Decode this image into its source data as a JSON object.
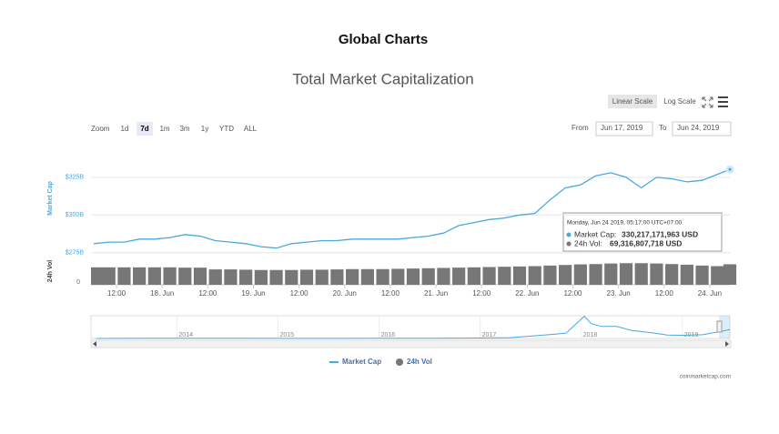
{
  "header": {
    "title": "Global Charts"
  },
  "controls": {
    "scale_buttons": [
      "Linear Scale",
      "Log Scale"
    ],
    "active_scale_index": 0,
    "zoom_label": "Zoom",
    "zoom_buttons": [
      "1d",
      "7d",
      "1m",
      "3m",
      "1y",
      "YTD",
      "ALL"
    ],
    "active_zoom_index": 1,
    "from_label": "From",
    "from_value": "Jun 17, 2019",
    "to_label": "To",
    "to_value": "Jun 24, 2019"
  },
  "chart_data": {
    "type": "line",
    "title": "Total Market Capitalization",
    "y_label": "Market Cap",
    "y2_label": "24h Vol",
    "xlim": [
      "2019-06-17T05:17",
      "2019-06-24T05:17"
    ],
    "xticks": [
      {
        "value": "2019-06-17T12:00",
        "label": "12:00"
      },
      {
        "value": "2019-06-18T00:00",
        "label": "18. Jun"
      },
      {
        "value": "2019-06-18T12:00",
        "label": "12:00"
      },
      {
        "value": "2019-06-19T00:00",
        "label": "19. Jun"
      },
      {
        "value": "2019-06-19T12:00",
        "label": "12:00"
      },
      {
        "value": "2019-06-20T00:00",
        "label": "20. Jun"
      },
      {
        "value": "2019-06-20T12:00",
        "label": "12:00"
      },
      {
        "value": "2019-06-21T00:00",
        "label": "21. Jun"
      },
      {
        "value": "2019-06-21T12:00",
        "label": "12:00"
      },
      {
        "value": "2019-06-22T00:00",
        "label": "22. Jun"
      },
      {
        "value": "2019-06-22T12:00",
        "label": "12:00"
      },
      {
        "value": "2019-06-23T00:00",
        "label": "23. Jun"
      },
      {
        "value": "2019-06-23T12:00",
        "label": "12:00"
      },
      {
        "value": "2019-06-24T00:00",
        "label": "24. Jun"
      }
    ],
    "ylim": [
      270000000000.0,
      337000000000.0
    ],
    "yticks": [
      {
        "value": 275000000000.0,
        "label": "$275B"
      },
      {
        "value": 300000000000.0,
        "label": "$300B"
      },
      {
        "value": 325000000000.0,
        "label": "$325B"
      }
    ],
    "y2lim": [
      0,
      80000000000.0
    ],
    "y2ticks": [
      0
    ],
    "grid": true,
    "x": [
      "2019-06-17T06:00",
      "2019-06-17T10:00",
      "2019-06-17T14:00",
      "2019-06-17T18:00",
      "2019-06-17T22:00",
      "2019-06-18T02:00",
      "2019-06-18T06:00",
      "2019-06-18T10:00",
      "2019-06-18T14:00",
      "2019-06-18T18:00",
      "2019-06-18T22:00",
      "2019-06-19T02:00",
      "2019-06-19T06:00",
      "2019-06-19T10:00",
      "2019-06-19T14:00",
      "2019-06-19T18:00",
      "2019-06-19T22:00",
      "2019-06-20T02:00",
      "2019-06-20T06:00",
      "2019-06-20T10:00",
      "2019-06-20T14:00",
      "2019-06-20T18:00",
      "2019-06-20T22:00",
      "2019-06-21T02:00",
      "2019-06-21T06:00",
      "2019-06-21T10:00",
      "2019-06-21T14:00",
      "2019-06-21T18:00",
      "2019-06-21T22:00",
      "2019-06-22T02:00",
      "2019-06-22T06:00",
      "2019-06-22T10:00",
      "2019-06-22T14:00",
      "2019-06-22T18:00",
      "2019-06-22T22:00",
      "2019-06-23T02:00",
      "2019-06-23T06:00",
      "2019-06-23T10:00",
      "2019-06-23T14:00",
      "2019-06-23T18:00",
      "2019-06-23T22:00",
      "2019-06-24T02:00",
      "2019-06-24T05:17"
    ],
    "series": [
      {
        "name": "Market Cap",
        "color": "#4aa8e0",
        "values": [
          281000000000.0,
          282000000000.0,
          282000000000.0,
          284000000000.0,
          284000000000.0,
          285000000000.0,
          287000000000.0,
          286000000000.0,
          283000000000.0,
          282000000000.0,
          281000000000.0,
          279000000000.0,
          278000000000.0,
          281000000000.0,
          282000000000.0,
          283000000000.0,
          283000000000.0,
          284000000000.0,
          284000000000.0,
          284000000000.0,
          284000000000.0,
          285000000000.0,
          286000000000.0,
          288000000000.0,
          293000000000.0,
          295000000000.0,
          297000000000.0,
          298000000000.0,
          300000000000.0,
          301000000000.0,
          310000000000.0,
          318000000000.0,
          320000000000.0,
          326000000000.0,
          328000000000.0,
          325000000000.0,
          318000000000.0,
          325000000000.0,
          324000000000.0,
          322000000000.0,
          323000000000.0,
          327000000000.0,
          330217171963
        ]
      },
      {
        "name": "24h Vol",
        "color": "#777777",
        "axis": "y2",
        "values": [
          59000000000.0,
          59000000000.0,
          59000000000.0,
          59000000000.0,
          59000000000.0,
          59000000000.0,
          58000000000.0,
          58000000000.0,
          52000000000.0,
          52000000000.0,
          51000000000.0,
          50000000000.0,
          50000000000.0,
          50000000000.0,
          51000000000.0,
          51000000000.0,
          52000000000.0,
          53000000000.0,
          53000000000.0,
          53000000000.0,
          54000000000.0,
          55000000000.0,
          56000000000.0,
          57000000000.0,
          58000000000.0,
          59000000000.0,
          60000000000.0,
          61000000000.0,
          62000000000.0,
          63000000000.0,
          65000000000.0,
          67000000000.0,
          69000000000.0,
          70000000000.0,
          72000000000.0,
          73000000000.0,
          73000000000.0,
          72000000000.0,
          70000000000.0,
          68000000000.0,
          65000000000.0,
          63000000000.0,
          69316807718
        ]
      }
    ],
    "tooltip": {
      "header": "Monday, Jun 24 2019, 05:17:00 UTC+07:00",
      "rows": [
        {
          "label": "Market Cap:",
          "value_label": "330,217,171,963 USD"
        },
        {
          "label": "24h Vol:",
          "value_label": "69,316,807,718 USD"
        }
      ]
    },
    "navigator": {
      "xlim": [
        2013.15,
        2019.47
      ],
      "xticks": [
        2014,
        2015,
        2016,
        2017,
        2018,
        2019
      ],
      "ylim": [
        0,
        850000000000.0
      ],
      "color": "#4aa8e0",
      "x": [
        2013.2,
        2013.5,
        2013.8,
        2014.0,
        2014.5,
        2015.0,
        2015.5,
        2016.0,
        2016.5,
        2017.0,
        2017.3,
        2017.5,
        2017.7,
        2017.85,
        2017.95,
        2018.03,
        2018.1,
        2018.2,
        2018.35,
        2018.5,
        2018.7,
        2018.85,
        2019.0,
        2019.2,
        2019.35,
        2019.47
      ],
      "values": [
        1500000000.0,
        2000000000.0,
        10000000000.0,
        10000000000.0,
        8000000000.0,
        5000000000.0,
        4000000000.0,
        7000000000.0,
        10000000000.0,
        18000000000.0,
        30000000000.0,
        90000000000.0,
        150000000000.0,
        200000000000.0,
        550000000000.0,
        830000000000.0,
        550000000000.0,
        450000000000.0,
        450000000000.0,
        300000000000.0,
        210000000000.0,
        130000000000.0,
        120000000000.0,
        140000000000.0,
        240000000000.0,
        330000000000.0
      ]
    },
    "credit": "coinmarketcap.com"
  }
}
